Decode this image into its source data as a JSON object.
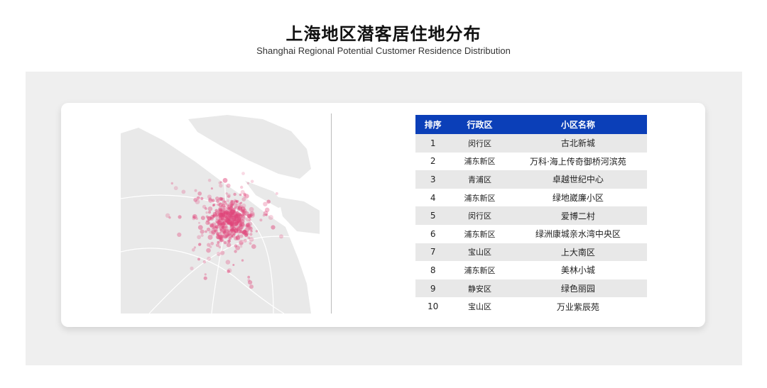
{
  "header": {
    "title": "上海地区潜客居住地分布",
    "subtitle": "Shanghai Regional Potential Customer Residence Distribution"
  },
  "colors": {
    "table_header": "#0b3fb8",
    "row_alt": "#e8e8e8",
    "dots": "#e0457a",
    "land": "#e9e9e9"
  },
  "table": {
    "headers": [
      "排序",
      "行政区",
      "小区名称"
    ],
    "rows": [
      {
        "rank": "1",
        "district": "闵行区",
        "community": "古北新城"
      },
      {
        "rank": "2",
        "district": "浦东新区",
        "community": "万科·海上传奇御桥河滨苑"
      },
      {
        "rank": "3",
        "district": "青浦区",
        "community": "卓越世纪中心"
      },
      {
        "rank": "4",
        "district": "浦东新区",
        "community": "绿地崴廉小区"
      },
      {
        "rank": "5",
        "district": "闵行区",
        "community": "爱博二村"
      },
      {
        "rank": "6",
        "district": "浦东新区",
        "community": "绿洲康城亲水湾中央区"
      },
      {
        "rank": "7",
        "district": "宝山区",
        "community": "上大南区"
      },
      {
        "rank": "8",
        "district": "浦东新区",
        "community": "美林小城"
      },
      {
        "rank": "9",
        "district": "静安区",
        "community": "绿色丽园"
      },
      {
        "rank": "10",
        "district": "宝山区",
        "community": "万业紫辰苑"
      }
    ]
  }
}
